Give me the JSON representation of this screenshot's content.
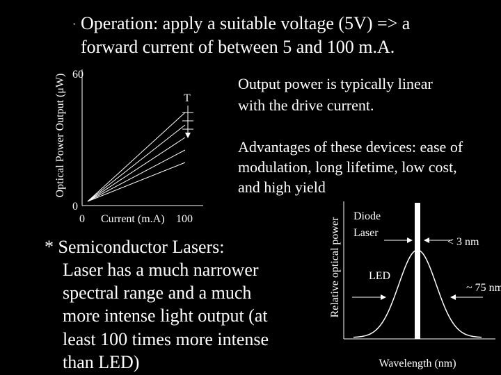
{
  "bullet": {
    "mark": "·",
    "lines": [
      "Operation: apply a suitable voltage (5V) => a",
      "forward current of between 5 and 100 m.A."
    ]
  },
  "power_chart": {
    "y_label": "Optical Power Output (μW)",
    "x_label": "Current (m.A)",
    "yticks": [
      0,
      60
    ],
    "xticks": [
      0,
      100
    ],
    "annotation": "T"
  },
  "linear_note": [
    "Output power is typically linear",
    "with the drive current."
  ],
  "advantages": [
    "Advantages of these devices: ease of",
    "modulation, long lifetime, low cost,",
    "and high yield"
  ],
  "lasers": [
    "* Semiconductor Lasers:",
    "Laser has a much narrower",
    "spectral range and a much",
    "more intense light output (at",
    "least 100 times more intense",
    "than LED)"
  ],
  "spectrum_chart": {
    "y_label": "Relative optical power",
    "x_label": "Wavelength (nm)",
    "laser_label": [
      "Diode",
      "Laser"
    ],
    "laser_width": "< 3 nm",
    "led_label": "LED",
    "led_width": "~ 75 nm"
  }
}
